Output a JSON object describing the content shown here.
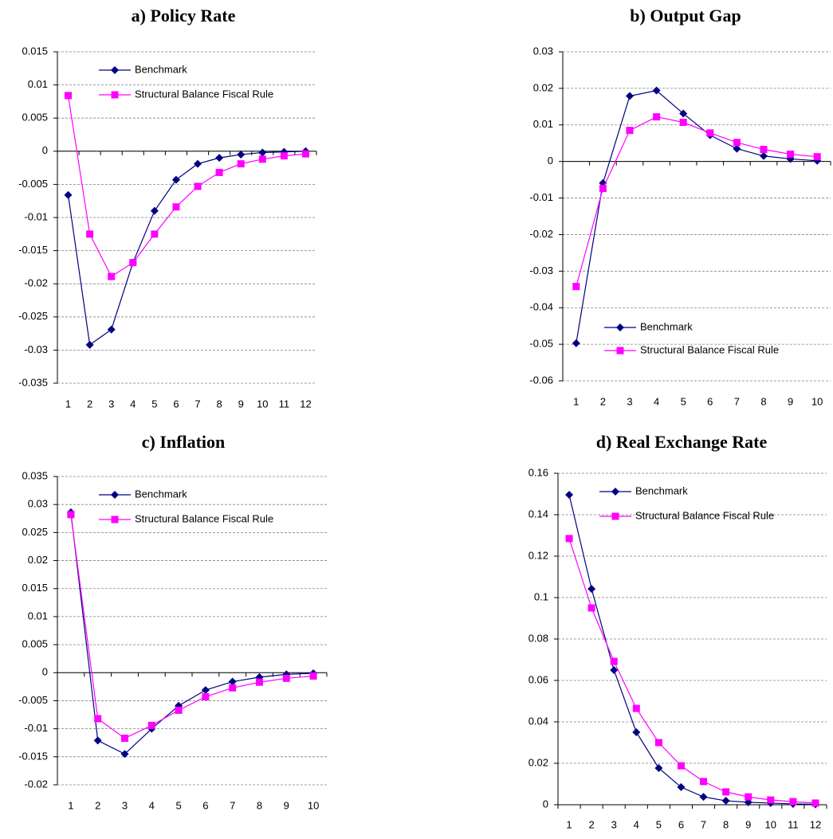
{
  "chart_data": [
    {
      "type": "line",
      "title": "a) Policy Rate",
      "categories": [
        "1",
        "2",
        "3",
        "4",
        "5",
        "6",
        "7",
        "8",
        "9",
        "10",
        "11",
        "12"
      ],
      "series": [
        {
          "name": "Benchmark",
          "color": "#000080",
          "marker": "diamond",
          "values": [
            -0.0066,
            -0.0292,
            -0.0269,
            -0.0168,
            -0.009,
            -0.0043,
            -0.0019,
            -0.001,
            -0.0005,
            -0.0002,
            -0.0001,
            0
          ]
        },
        {
          "name": "Structural Balance Fiscal Rule",
          "color": "#FF00FF",
          "marker": "square",
          "values": [
            0.0084,
            -0.0125,
            -0.0189,
            -0.0168,
            -0.0125,
            -0.0084,
            -0.0053,
            -0.0032,
            -0.0019,
            -0.0012,
            -0.0007,
            -0.0004
          ]
        }
      ],
      "ylim": [
        -0.035,
        0.015
      ],
      "yticks": [
        -0.035,
        -0.03,
        -0.025,
        -0.02,
        -0.015,
        -0.01,
        -0.005,
        0,
        0.005,
        0.01,
        0.015
      ],
      "grid": true,
      "legend": "upper center"
    },
    {
      "type": "line",
      "title": "b) Output Gap",
      "categories": [
        "1",
        "2",
        "3",
        "4",
        "5",
        "6",
        "7",
        "8",
        "9",
        "10"
      ],
      "series": [
        {
          "name": "Benchmark",
          "color": "#000080",
          "marker": "diamond",
          "values": [
            -0.0497,
            -0.0059,
            0.0179,
            0.0194,
            0.0131,
            0.0072,
            0.0035,
            0.0015,
            0.0007,
            0.0002
          ]
        },
        {
          "name": "Structural Balance Fiscal Rule",
          "color": "#FF00FF",
          "marker": "square",
          "values": [
            -0.0342,
            -0.0074,
            0.0085,
            0.0122,
            0.0107,
            0.0078,
            0.0052,
            0.0033,
            0.002,
            0.0013
          ]
        }
      ],
      "ylim": [
        -0.06,
        0.03
      ],
      "yticks": [
        -0.06,
        -0.05,
        -0.04,
        -0.03,
        -0.02,
        -0.01,
        0,
        0.01,
        0.02,
        0.03
      ],
      "grid": true,
      "legend": "lower center"
    },
    {
      "type": "line",
      "title": "c) Inflation",
      "categories": [
        "1",
        "2",
        "3",
        "4",
        "5",
        "6",
        "7",
        "8",
        "9",
        "10"
      ],
      "series": [
        {
          "name": "Benchmark",
          "color": "#000080",
          "marker": "diamond",
          "values": [
            0.0286,
            -0.0121,
            -0.0145,
            -0.01,
            -0.0059,
            -0.0031,
            -0.0016,
            -0.0008,
            -0.0003,
            -0.0001
          ]
        },
        {
          "name": "Structural Balance Fiscal Rule",
          "color": "#FF00FF",
          "marker": "square",
          "values": [
            0.0282,
            -0.0082,
            -0.0117,
            -0.0094,
            -0.0067,
            -0.0043,
            -0.0027,
            -0.0017,
            -0.001,
            -0.0006
          ]
        }
      ],
      "ylim": [
        -0.02,
        0.035
      ],
      "yticks": [
        -0.02,
        -0.015,
        -0.01,
        -0.005,
        0,
        0.005,
        0.01,
        0.015,
        0.02,
        0.025,
        0.03,
        0.035
      ],
      "grid": true,
      "legend": "upper center"
    },
    {
      "type": "line",
      "title": "d) Real Exchange Rate",
      "categories": [
        "1",
        "2",
        "3",
        "4",
        "5",
        "6",
        "7",
        "8",
        "9",
        "10",
        "11",
        "12"
      ],
      "series": [
        {
          "name": "Benchmark",
          "color": "#000080",
          "marker": "diamond",
          "values": [
            0.1496,
            0.1042,
            0.065,
            0.035,
            0.0177,
            0.0085,
            0.0038,
            0.0019,
            0.0012,
            0.0008,
            0.0004,
            0.0002
          ]
        },
        {
          "name": "Structural Balance Fiscal Rule",
          "color": "#FF00FF",
          "marker": "square",
          "values": [
            0.1285,
            0.095,
            0.0692,
            0.0465,
            0.03,
            0.0188,
            0.0112,
            0.0062,
            0.0038,
            0.0023,
            0.0015,
            0.0008
          ]
        }
      ],
      "ylim": [
        0,
        0.16
      ],
      "yticks": [
        0,
        0.02,
        0.04,
        0.06,
        0.08,
        0.1,
        0.12,
        0.14,
        0.16
      ],
      "grid": true,
      "legend": "upper center"
    }
  ]
}
